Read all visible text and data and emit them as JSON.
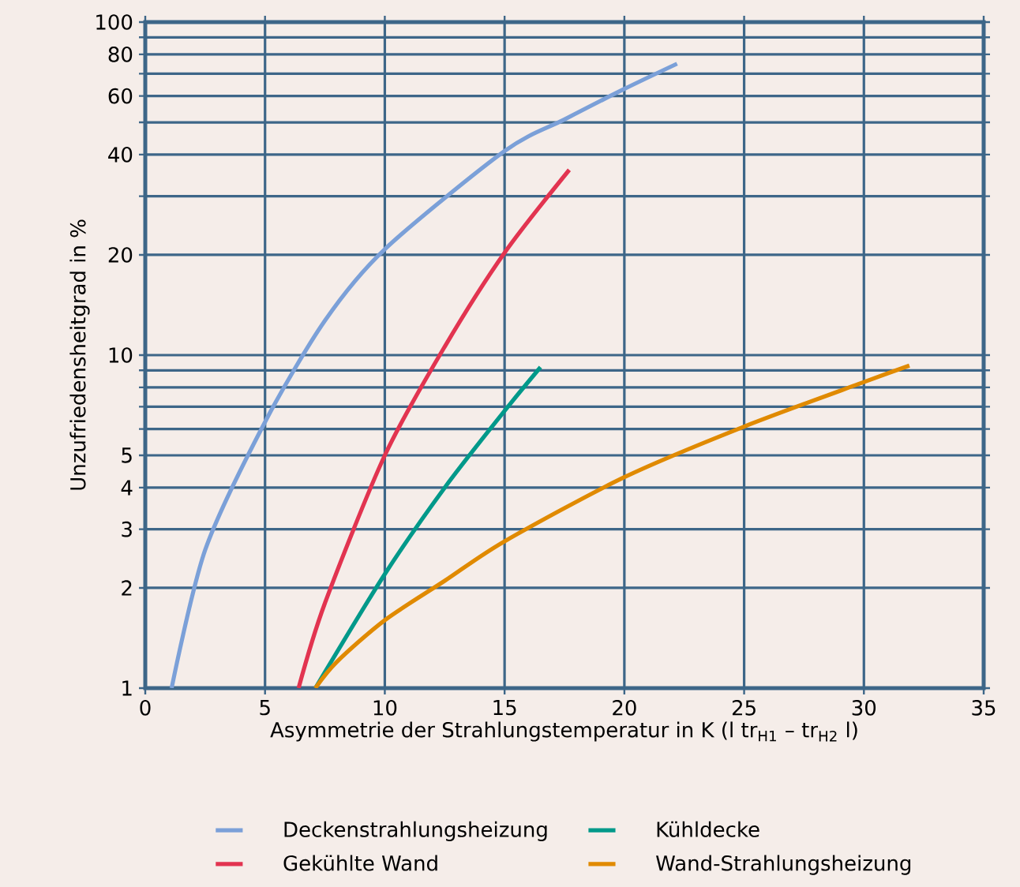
{
  "chart_data": {
    "type": "line",
    "xlabel": "Asymmetrie der Strahlungstemperatur in K (l tr$_{H1}$ – tr$_{H2}$ l)",
    "ylabel": "Unzufriedensheitgrad in %",
    "xlim": [
      0,
      35
    ],
    "ylim": [
      1,
      100
    ],
    "log": "y",
    "xticks": [
      0,
      5,
      10,
      15,
      20,
      25,
      30,
      35
    ],
    "yticks": [
      1,
      2,
      3,
      4,
      5,
      {
        "value": 6,
        "label": null
      },
      {
        "value": 7,
        "label": null
      },
      {
        "value": 8,
        "label": null
      },
      {
        "value": 9,
        "label": null
      },
      10,
      20,
      {
        "value": 30,
        "label": null
      },
      40,
      {
        "value": 50,
        "label": null
      },
      60,
      {
        "value": 70,
        "label": null
      },
      80,
      {
        "value": 90,
        "label": null
      },
      100
    ],
    "grid": true,
    "legend": "bottom",
    "marker": "none",
    "line_style": "solid",
    "series": [
      {
        "name": "Deckenstrahlungsheizung",
        "color": "#7ba0d8",
        "x": [
          1.1,
          2.5,
          5,
          7.5,
          10,
          15,
          17.5,
          20,
          22.2
        ],
        "values": [
          1,
          2.6,
          6.3,
          12.7,
          20.8,
          41,
          51,
          63,
          75
        ]
      },
      {
        "name": "Kühldecke",
        "color": "#00998a",
        "x": [
          7.1,
          10,
          12.5,
          15,
          16.5
        ],
        "values": [
          1,
          2.2,
          4.0,
          6.8,
          9.2
        ]
      },
      {
        "name": "Gekühlte Wand",
        "color": "#e23450",
        "x": [
          6.4,
          7.5,
          10,
          12.5,
          15,
          17.7
        ],
        "values": [
          1,
          1.8,
          5.0,
          10.6,
          20.3,
          36
        ]
      },
      {
        "name": "Wand-Strahlungsheizung",
        "color": "#e08a00",
        "x": [
          7.1,
          8,
          10,
          12.5,
          15,
          20,
          25,
          30,
          31.9
        ],
        "values": [
          1,
          1.2,
          1.6,
          2.1,
          2.76,
          4.3,
          6.1,
          8.3,
          9.3
        ]
      }
    ]
  }
}
